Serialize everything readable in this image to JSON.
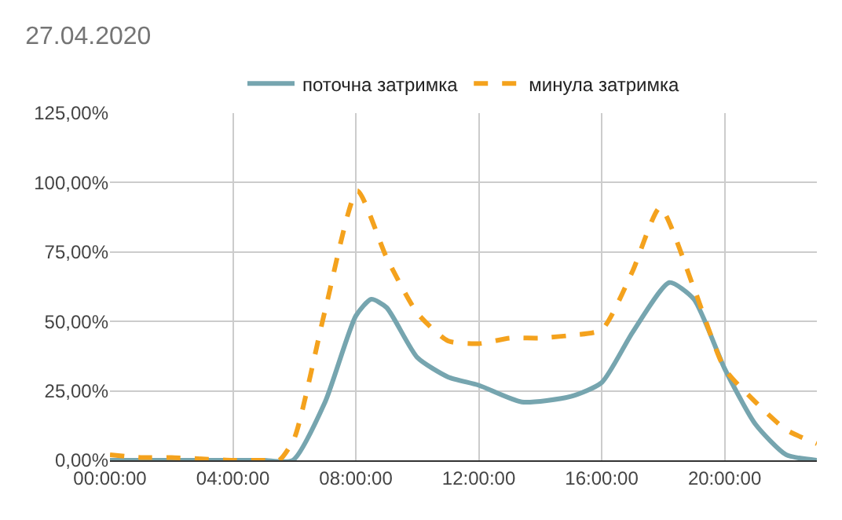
{
  "chart_data": {
    "type": "line",
    "title": "27.04.2020",
    "legend": "top",
    "grid": true,
    "xlim": [
      0,
      23
    ],
    "xticks": [
      {
        "value": 0,
        "label": "00:00:00"
      },
      {
        "value": 4,
        "label": "04:00:00"
      },
      {
        "value": 8,
        "label": "08:00:00"
      },
      {
        "value": 12,
        "label": "12:00:00"
      },
      {
        "value": 16,
        "label": "16:00:00"
      },
      {
        "value": 20,
        "label": "20:00:00"
      }
    ],
    "ylim": [
      0,
      125
    ],
    "yticks": [
      {
        "value": 0,
        "label": "0,00%"
      },
      {
        "value": 25,
        "label": "25,00%"
      },
      {
        "value": 50,
        "label": "50,00%"
      },
      {
        "value": 75,
        "label": "75,00%"
      },
      {
        "value": 100,
        "label": "100,00%"
      },
      {
        "value": 125,
        "label": "125,00%"
      }
    ],
    "series": [
      {
        "name": "поточна затримка",
        "color": "#76a5af",
        "line_style": "solid",
        "x": [
          0,
          1,
          2,
          3,
          4,
          5,
          5.95,
          7,
          8,
          8.5,
          9,
          10,
          11,
          12,
          13.4,
          15,
          16,
          17,
          18.2,
          19,
          20,
          21,
          22,
          23
        ],
        "values": [
          0,
          0,
          0,
          0,
          0,
          0,
          0,
          21,
          52,
          58,
          55,
          37,
          30,
          27,
          21,
          23,
          28,
          46,
          64,
          58,
          33,
          13,
          2,
          0
        ]
      },
      {
        "name": "минула затримка",
        "color": "#f4a21d",
        "line_style": "dashed",
        "x": [
          0,
          1,
          2,
          3,
          4,
          5,
          5.5,
          6,
          7,
          8.05,
          9,
          10,
          11,
          12,
          13,
          14,
          15,
          16,
          17,
          17.9,
          19,
          20,
          21,
          22,
          23
        ],
        "values": [
          2,
          1,
          1,
          0.5,
          0,
          0,
          0,
          8,
          54,
          97,
          73,
          53,
          43,
          42,
          44,
          44,
          45,
          47,
          68,
          91,
          62,
          33,
          21,
          11,
          6
        ]
      }
    ]
  }
}
